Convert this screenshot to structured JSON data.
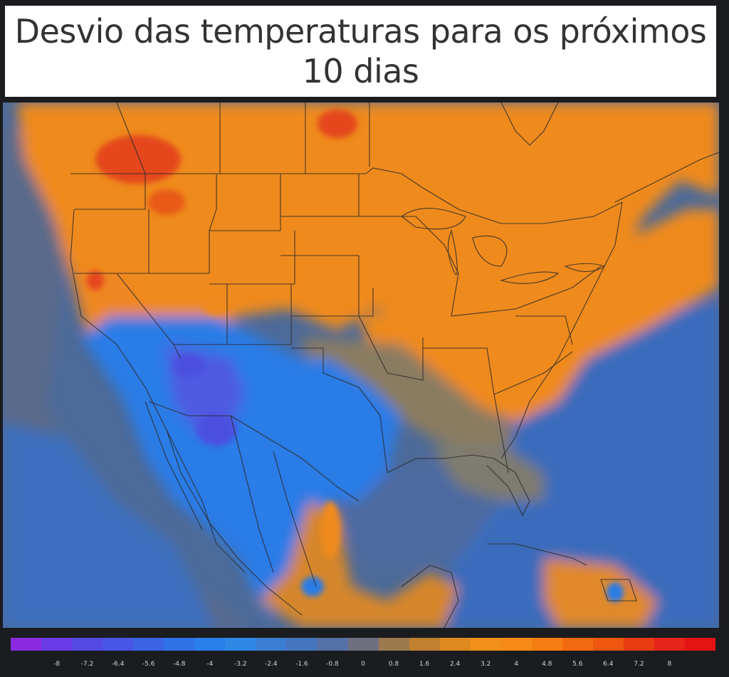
{
  "title": {
    "line1": "Desvio das temperaturas para os próximos",
    "line2": "10 dias"
  },
  "map": {
    "region": "North America, Central America and Caribbean",
    "colors": {
      "ocean_neutral": "#4a6a9a",
      "ocean_deep": "#3a6fc0",
      "warm_orange": "#f08a1c",
      "hot_red": "#e4461a",
      "cold_blue": "#2a7be6",
      "colder_violet": "#4b4fe0",
      "neutral_gray": "#6f7788",
      "borders": "#2a2a2a"
    }
  },
  "legend": {
    "colors": [
      "#8a2be2",
      "#6a3be6",
      "#5549e4",
      "#4855e6",
      "#3c63e6",
      "#2f72e8",
      "#2a80ea",
      "#2f88e6",
      "#3a7fd4",
      "#4675bf",
      "#5570a6",
      "#6f6f80",
      "#9b7a4e",
      "#c0802f",
      "#de8a1f",
      "#f0901a",
      "#f68a16",
      "#f57d12",
      "#f26a10",
      "#ef5610",
      "#ea3c12",
      "#e6241a",
      "#e41414"
    ],
    "labels": [
      "-8",
      "-7.2",
      "-6.4",
      "-5.6",
      "-4.8",
      "-4",
      "-3.2",
      "-2.4",
      "-1.6",
      "-0.8",
      "0",
      "0.8",
      "1.6",
      "2.4",
      "3.2",
      "4",
      "4.8",
      "5.6",
      "6.4",
      "7.2",
      "8"
    ]
  }
}
